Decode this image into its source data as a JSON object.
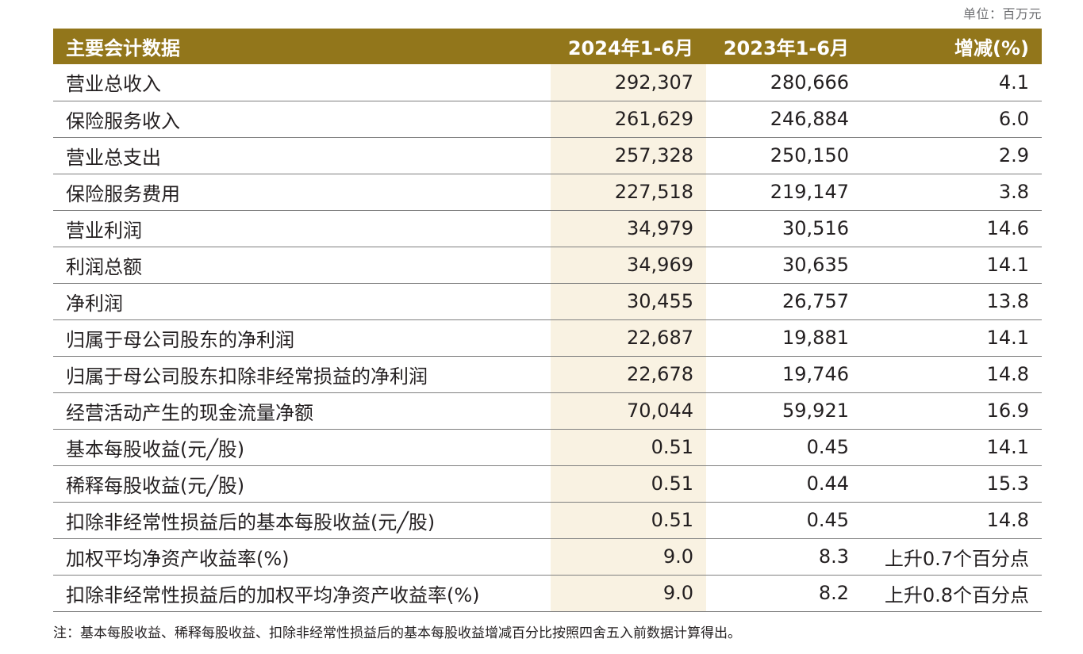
{
  "unit_label": "单位：百万元",
  "header": {
    "label": "主要会计数据",
    "current": "2024年1-6月",
    "previous": "2023年1-6月",
    "change": "增减(%)"
  },
  "rows": [
    {
      "label": "营业总收入",
      "current": "292,307",
      "previous": "280,666",
      "change": "4.1"
    },
    {
      "label": "保险服务收入",
      "current": "261,629",
      "previous": "246,884",
      "change": "6.0"
    },
    {
      "label": "营业总支出",
      "current": "257,328",
      "previous": "250,150",
      "change": "2.9"
    },
    {
      "label": "保险服务费用",
      "current": "227,518",
      "previous": "219,147",
      "change": "3.8"
    },
    {
      "label": "营业利润",
      "current": "34,979",
      "previous": "30,516",
      "change": "14.6"
    },
    {
      "label": "利润总额",
      "current": "34,969",
      "previous": "30,635",
      "change": "14.1"
    },
    {
      "label": "净利润",
      "current": "30,455",
      "previous": "26,757",
      "change": "13.8"
    },
    {
      "label": "归属于母公司股东的净利润",
      "current": "22,687",
      "previous": "19,881",
      "change": "14.1"
    },
    {
      "label": "归属于母公司股东扣除非经常损益的净利润",
      "current": "22,678",
      "previous": "19,746",
      "change": "14.8"
    },
    {
      "label": "经营活动产生的现金流量净额",
      "current": "70,044",
      "previous": "59,921",
      "change": "16.9"
    },
    {
      "label": "基本每股收益(元╱股)",
      "current": "0.51",
      "previous": "0.45",
      "change": "14.1"
    },
    {
      "label": "稀释每股收益(元╱股)",
      "current": "0.51",
      "previous": "0.44",
      "change": "15.3"
    },
    {
      "label": "扣除非经常性损益后的基本每股收益(元╱股)",
      "current": "0.51",
      "previous": "0.45",
      "change": "14.8"
    },
    {
      "label": "加权平均净资产收益率(%)",
      "current": "9.0",
      "previous": "8.3",
      "change": "上升0.7个百分点"
    },
    {
      "label": "扣除非经常性损益后的加权平均净资产收益率(%)",
      "current": "9.0",
      "previous": "8.2",
      "change": "上升0.8个百分点"
    }
  ],
  "note": "注：基本每股收益、稀释每股收益、扣除非经常性损益后的基本每股收益增减百分比按照四舍五入前数据计算得出。",
  "colors": {
    "header_bg": "#92761b",
    "highlight_column_bg": "#f9f2e2",
    "row_divider": "#7f7f7f"
  }
}
